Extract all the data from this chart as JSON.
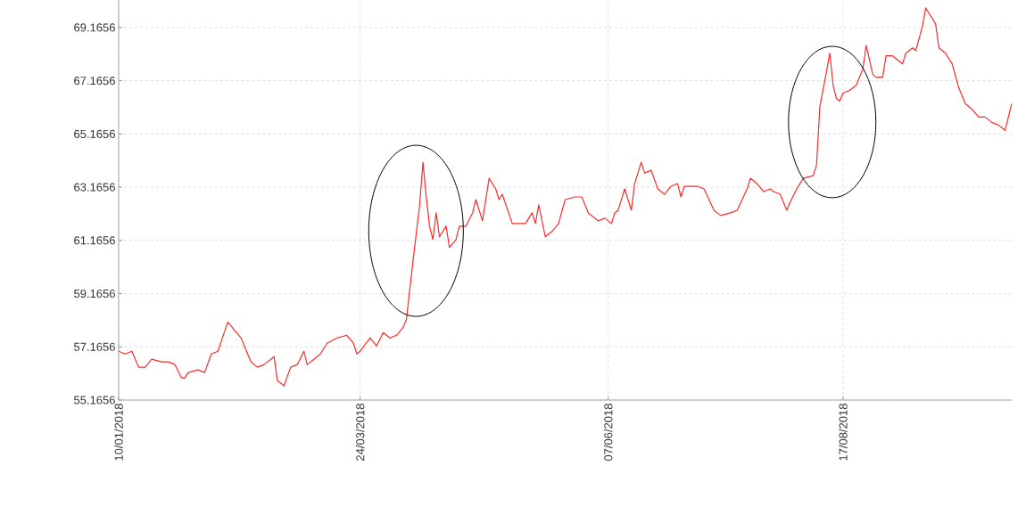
{
  "chart_data": {
    "type": "line",
    "x": [
      "2018-01-10",
      "2018-01-12",
      "2018-01-14",
      "2018-01-16",
      "2018-01-18",
      "2018-01-20",
      "2018-01-23",
      "2018-01-25",
      "2018-01-27",
      "2018-01-29",
      "2018-01-30",
      "2018-01-31",
      "2018-02-03",
      "2018-02-05",
      "2018-02-07",
      "2018-02-09",
      "2018-02-12",
      "2018-02-14",
      "2018-02-16",
      "2018-02-19",
      "2018-02-21",
      "2018-02-23",
      "2018-02-26",
      "2018-02-27",
      "2018-03-01",
      "2018-03-03",
      "2018-03-05",
      "2018-03-07",
      "2018-03-08",
      "2018-03-10",
      "2018-03-12",
      "2018-03-14",
      "2018-03-17",
      "2018-03-20",
      "2018-03-22",
      "2018-03-23",
      "2018-03-24",
      "2018-03-27",
      "2018-03-29",
      "2018-03-31",
      "2018-04-02",
      "2018-04-04",
      "2018-04-06",
      "2018-04-07",
      "2018-04-09",
      "2018-04-11",
      "2018-04-12",
      "2018-04-13",
      "2018-04-14",
      "2018-04-15",
      "2018-04-16",
      "2018-04-17",
      "2018-04-19",
      "2018-04-20",
      "2018-04-22",
      "2018-04-23",
      "2018-04-25",
      "2018-04-27",
      "2018-04-28",
      "2018-04-30",
      "2018-05-02",
      "2018-05-04",
      "2018-05-05",
      "2018-05-06",
      "2018-05-09",
      "2018-05-11",
      "2018-05-13",
      "2018-05-15",
      "2018-05-16",
      "2018-05-17",
      "2018-05-19",
      "2018-05-21",
      "2018-05-23",
      "2018-05-25",
      "2018-05-28",
      "2018-05-30",
      "2018-06-01",
      "2018-06-04",
      "2018-06-06",
      "2018-06-08",
      "2018-06-09",
      "2018-06-10",
      "2018-06-12",
      "2018-06-14",
      "2018-06-15",
      "2018-06-17",
      "2018-06-18",
      "2018-06-20",
      "2018-06-22",
      "2018-06-24",
      "2018-06-26",
      "2018-06-28",
      "2018-06-29",
      "2018-06-30",
      "2018-07-04",
      "2018-07-06",
      "2018-07-09",
      "2018-07-11",
      "2018-07-14",
      "2018-07-16",
      "2018-07-19",
      "2018-07-20",
      "2018-07-22",
      "2018-07-24",
      "2018-07-26",
      "2018-07-27",
      "2018-07-29",
      "2018-07-31",
      "2018-08-01",
      "2018-08-03",
      "2018-08-05",
      "2018-08-08",
      "2018-08-09",
      "2018-08-10",
      "2018-08-12",
      "2018-08-13",
      "2018-08-14",
      "2018-08-15",
      "2018-08-16",
      "2018-08-17",
      "2018-08-19",
      "2018-08-21",
      "2018-08-23",
      "2018-08-24",
      "2018-08-26",
      "2018-08-27",
      "2018-08-29",
      "2018-08-30",
      "2018-09-01",
      "2018-09-03",
      "2018-09-04",
      "2018-09-05",
      "2018-09-07",
      "2018-09-08",
      "2018-09-10",
      "2018-09-11",
      "2018-09-14",
      "2018-09-15",
      "2018-09-17",
      "2018-09-19",
      "2018-09-21",
      "2018-09-23",
      "2018-09-25",
      "2018-09-27",
      "2018-09-29",
      "2018-10-01",
      "2018-10-03",
      "2018-10-05",
      "2018-10-06",
      "2018-10-07"
    ],
    "series": [
      {
        "color": "#ff2a2a",
        "values": [
          57.0,
          56.9,
          57.0,
          56.4,
          56.4,
          56.7,
          56.6,
          56.6,
          56.5,
          56.0,
          56.0,
          56.2,
          56.3,
          56.2,
          56.9,
          57.0,
          58.1,
          57.8,
          57.5,
          56.6,
          56.4,
          56.5,
          56.8,
          55.9,
          55.7,
          56.4,
          56.5,
          57.0,
          56.5,
          56.7,
          56.9,
          57.3,
          57.5,
          57.6,
          57.3,
          56.9,
          57.0,
          57.5,
          57.2,
          57.7,
          57.5,
          57.6,
          57.9,
          58.2,
          60.4,
          62.5,
          64.1,
          62.8,
          61.7,
          61.2,
          62.2,
          61.3,
          61.7,
          60.9,
          61.2,
          61.7,
          61.7,
          62.2,
          62.7,
          61.9,
          63.5,
          63.1,
          62.7,
          62.9,
          61.8,
          61.8,
          61.8,
          62.2,
          61.8,
          62.5,
          61.3,
          61.5,
          61.8,
          62.7,
          62.8,
          62.8,
          62.2,
          61.9,
          62.0,
          61.8,
          62.2,
          62.3,
          63.1,
          62.3,
          63.3,
          64.1,
          63.7,
          63.8,
          63.1,
          62.9,
          63.2,
          63.3,
          62.8,
          63.2,
          63.2,
          63.1,
          62.3,
          62.1,
          62.2,
          62.3,
          63.1,
          63.5,
          63.3,
          63.0,
          63.1,
          63.0,
          62.9,
          62.3,
          62.6,
          63.1,
          63.5,
          63.6,
          64.0,
          66.2,
          67.5,
          68.2,
          67.0,
          66.5,
          66.4,
          66.7,
          66.8,
          67.0,
          67.6,
          68.5,
          67.4,
          67.3,
          67.3,
          68.1,
          68.1,
          67.9,
          67.8,
          68.2,
          68.4,
          68.3,
          69.2,
          69.9,
          69.3,
          68.4,
          68.2,
          67.8,
          66.9,
          66.3,
          66.1,
          65.8,
          65.8,
          65.6,
          65.5,
          65.3,
          65.8,
          66.3
        ]
      }
    ],
    "xlim": [
      "2018-01-10",
      "2018-10-07"
    ],
    "xticks": [
      {
        "value": "2018-01-10",
        "label": "10/01/2018"
      },
      {
        "value": "2018-03-24",
        "label": "24/03/2018"
      },
      {
        "value": "2018-06-07",
        "label": "07/06/2018"
      },
      {
        "value": "2018-08-17",
        "label": "17/08/2018"
      }
    ],
    "ylim": [
      55.1656,
      70.2
    ],
    "yticks": [
      55.1656,
      57.1656,
      59.1656,
      61.1656,
      63.1656,
      65.1656,
      67.1656,
      69.1656
    ],
    "grid": true,
    "line_style": "solid"
  }
}
